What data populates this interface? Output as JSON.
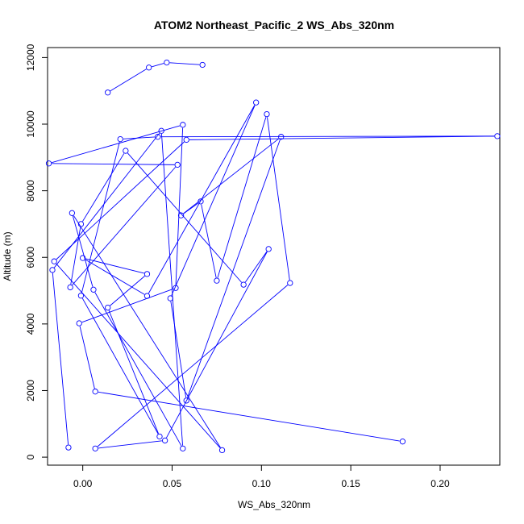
{
  "chart_data": {
    "type": "line",
    "title": "ATOM2 Northeast_Pacific_2 WS_Abs_320nm",
    "xlabel": "WS_Abs_320nm",
    "ylabel": "Altitude (m)",
    "xlim": [
      -0.0197,
      0.2334
    ],
    "ylim": [
      -240,
      12300
    ],
    "xticks": [
      0.0,
      0.05,
      0.1,
      0.15,
      0.2
    ],
    "xtick_labels": [
      "0.00",
      "0.05",
      "0.10",
      "0.15",
      "0.20"
    ],
    "yticks": [
      0,
      2000,
      4000,
      6000,
      8000,
      10000,
      12000
    ],
    "ytick_labels": [
      "0",
      "2000",
      "4000",
      "6000",
      "8000",
      "10000",
      "12000"
    ],
    "grid": false,
    "marker": "open-circle",
    "series": [
      {
        "color": "#0000ff",
        "points": [
          [
            0.014,
            10950
          ],
          [
            0.037,
            11700
          ],
          [
            0.047,
            11850
          ],
          [
            0.067,
            11780
          ]
        ]
      },
      {
        "color": "#0000ff",
        "points": [
          [
            0.179,
            470
          ],
          [
            0.007,
            1970
          ],
          [
            -0.002,
            4020
          ],
          [
            0.052,
            5080
          ],
          [
            0.056,
            9980
          ],
          [
            -0.019,
            8820
          ],
          [
            0.053,
            8780
          ],
          [
            -0.007,
            5100
          ],
          [
            -0.001,
            7000
          ],
          [
            0.024,
            9200
          ],
          [
            0.09,
            5180
          ],
          [
            0.104,
            6250
          ],
          [
            0.046,
            500
          ],
          [
            0.007,
            260
          ],
          [
            0.116,
            5230
          ],
          [
            0.103,
            10300
          ],
          [
            0.075,
            5300
          ],
          [
            0.066,
            7680
          ],
          [
            0.055,
            7260
          ],
          [
            0.111,
            9620
          ],
          [
            0.058,
            1700
          ],
          [
            0.049,
            4770
          ],
          [
            0.097,
            10650
          ],
          [
            0.036,
            4840
          ],
          [
            0.0,
            5980
          ],
          [
            0.036,
            5500
          ],
          [
            0.014,
            4490
          ],
          [
            0.043,
            620
          ],
          [
            -0.001,
            4850
          ],
          [
            0.021,
            9550
          ],
          [
            0.042,
            9620
          ],
          [
            0.232,
            9640
          ],
          [
            0.058,
            9530
          ],
          [
            -0.016,
            5880
          ],
          [
            0.078,
            210
          ],
          [
            -0.006,
            7330
          ],
          [
            0.006,
            5030
          ],
          [
            0.056,
            260
          ],
          [
            0.044,
            9800
          ],
          [
            -0.017,
            5620
          ],
          [
            -0.008,
            290
          ]
        ]
      }
    ]
  }
}
